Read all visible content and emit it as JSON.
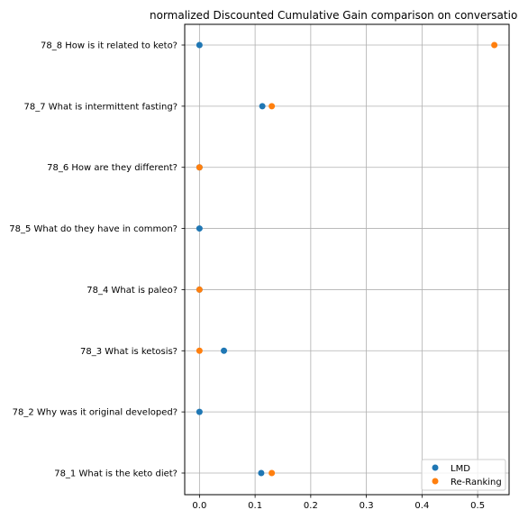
{
  "chart_data": {
    "type": "scatter",
    "title": "normalized Discounted Cumulative Gain comparison on conversatio",
    "xlabel": "",
    "ylabel": "",
    "xlim": [
      -0.0265,
      0.5565
    ],
    "xticks": [
      0.0,
      0.1,
      0.2,
      0.3,
      0.4,
      0.5
    ],
    "xtick_labels": [
      "0.0",
      "0.1",
      "0.2",
      "0.3",
      "0.4",
      "0.5"
    ],
    "categories": [
      "78_1 What is the keto diet?",
      "78_2 Why was it original developed?",
      "78_3 What is ketosis?",
      "78_4 What is paleo?",
      "78_5 What do they have in common?",
      "78_6 How are they different?",
      "78_7 What is intermittent fasting?",
      "78_8 How is it related to keto?"
    ],
    "series": [
      {
        "name": "LMD",
        "color": "#1f77b4",
        "values": [
          0.111,
          0.0,
          0.044,
          0.0,
          0.0,
          0.0,
          0.113,
          0.0
        ]
      },
      {
        "name": "Re-Ranking",
        "color": "#ff7f0e",
        "values": [
          0.13,
          null,
          0.0,
          0.0,
          null,
          0.0,
          0.13,
          0.53
        ]
      }
    ],
    "grid": true,
    "legend_position": "bottom-right"
  }
}
